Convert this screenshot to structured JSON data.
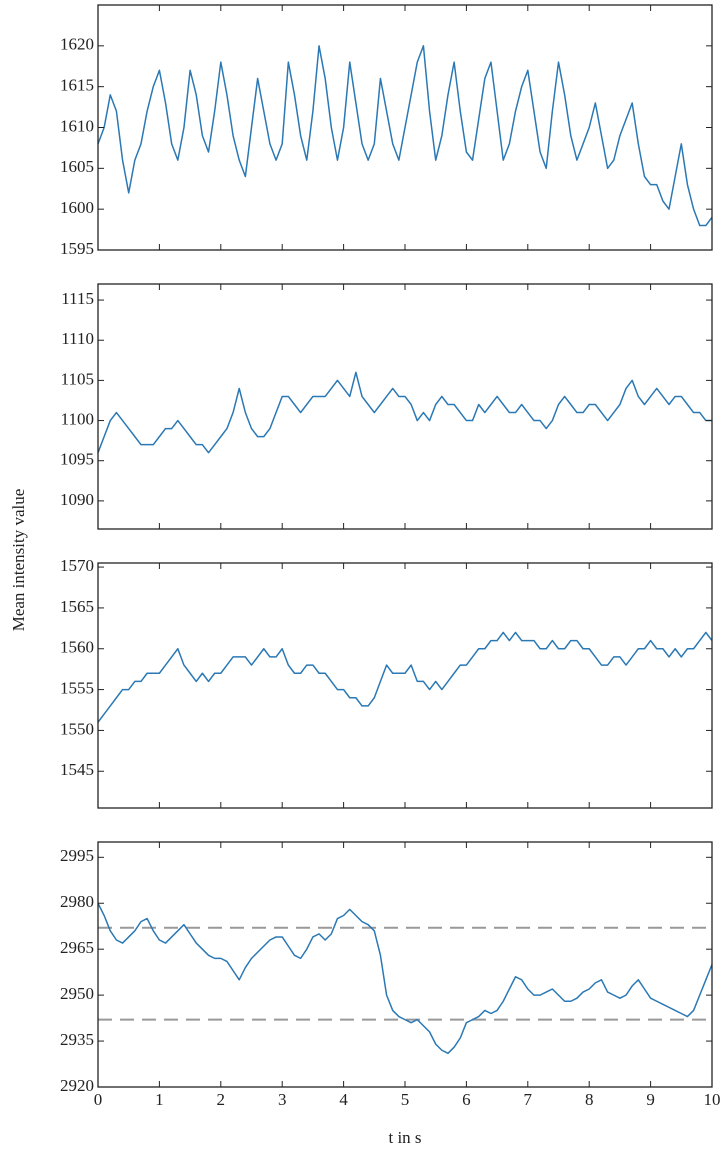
{
  "ylabel": "Mean intensity value",
  "chart_data": [
    {
      "type": "line",
      "color": "#2a78b4",
      "ylim": [
        1595,
        1625
      ],
      "yticks": [
        1595,
        1600,
        1605,
        1610,
        1615,
        1620
      ],
      "xlim": [
        0,
        10
      ],
      "xticks": [
        0,
        1,
        2,
        3,
        4,
        5,
        6,
        7,
        8,
        9,
        10
      ],
      "show_xtick_labels": false,
      "x": [
        0,
        0.1,
        0.2,
        0.3,
        0.4,
        0.5,
        0.6,
        0.7,
        0.8,
        0.9,
        1,
        1.1,
        1.2,
        1.3,
        1.4,
        1.5,
        1.6,
        1.7,
        1.8,
        1.9,
        2,
        2.1,
        2.2,
        2.3,
        2.4,
        2.5,
        2.6,
        2.7,
        2.8,
        2.9,
        3,
        3.1,
        3.2,
        3.3,
        3.4,
        3.5,
        3.6,
        3.7,
        3.8,
        3.9,
        4,
        4.1,
        4.2,
        4.3,
        4.4,
        4.5,
        4.6,
        4.7,
        4.8,
        4.9,
        5,
        5.1,
        5.2,
        5.3,
        5.4,
        5.5,
        5.6,
        5.7,
        5.8,
        5.9,
        6,
        6.1,
        6.2,
        6.3,
        6.4,
        6.5,
        6.6,
        6.7,
        6.8,
        6.9,
        7,
        7.1,
        7.2,
        7.3,
        7.4,
        7.5,
        7.6,
        7.7,
        7.8,
        7.9,
        8,
        8.1,
        8.2,
        8.3,
        8.4,
        8.5,
        8.6,
        8.7,
        8.8,
        8.9,
        9,
        9.1,
        9.2,
        9.3,
        9.4,
        9.5,
        9.6,
        9.7,
        9.8,
        9.9,
        10
      ],
      "values": [
        1608,
        1610,
        1614,
        1612,
        1606,
        1602,
        1606,
        1608,
        1612,
        1615,
        1617,
        1613,
        1608,
        1606,
        1610,
        1617,
        1614,
        1609,
        1607,
        1612,
        1618,
        1614,
        1609,
        1606,
        1604,
        1610,
        1616,
        1612,
        1608,
        1606,
        1608,
        1618,
        1614,
        1609,
        1606,
        1612,
        1620,
        1616,
        1610,
        1606,
        1610,
        1618,
        1613,
        1608,
        1606,
        1608,
        1616,
        1612,
        1608,
        1606,
        1610,
        1614,
        1618,
        1620,
        1612,
        1606,
        1609,
        1614,
        1618,
        1612,
        1607,
        1606,
        1611,
        1616,
        1618,
        1612,
        1606,
        1608,
        1612,
        1615,
        1617,
        1612,
        1607,
        1605,
        1612,
        1618,
        1614,
        1609,
        1606,
        1608,
        1610,
        1613,
        1609,
        1605,
        1606,
        1609,
        1611,
        1613,
        1608,
        1604,
        1603,
        1603,
        1601,
        1600,
        1604,
        1608,
        1603,
        1600,
        1598,
        1598,
        1599
      ]
    },
    {
      "type": "line",
      "color": "#2a78b4",
      "ylim": [
        1086.5,
        1117
      ],
      "yticks": [
        1090,
        1095,
        1100,
        1105,
        1110,
        1115
      ],
      "xlim": [
        0,
        10
      ],
      "xticks": [
        0,
        1,
        2,
        3,
        4,
        5,
        6,
        7,
        8,
        9,
        10
      ],
      "show_xtick_labels": false,
      "x": [
        0,
        0.1,
        0.2,
        0.3,
        0.4,
        0.5,
        0.6,
        0.7,
        0.8,
        0.9,
        1,
        1.1,
        1.2,
        1.3,
        1.4,
        1.5,
        1.6,
        1.7,
        1.8,
        1.9,
        2,
        2.1,
        2.2,
        2.3,
        2.4,
        2.5,
        2.6,
        2.7,
        2.8,
        2.9,
        3,
        3.1,
        3.2,
        3.3,
        3.4,
        3.5,
        3.6,
        3.7,
        3.8,
        3.9,
        4,
        4.1,
        4.2,
        4.3,
        4.4,
        4.5,
        4.6,
        4.7,
        4.8,
        4.9,
        5,
        5.1,
        5.2,
        5.3,
        5.4,
        5.5,
        5.6,
        5.7,
        5.8,
        5.9,
        6,
        6.1,
        6.2,
        6.3,
        6.4,
        6.5,
        6.6,
        6.7,
        6.8,
        6.9,
        7,
        7.1,
        7.2,
        7.3,
        7.4,
        7.5,
        7.6,
        7.7,
        7.8,
        7.9,
        8,
        8.1,
        8.2,
        8.3,
        8.4,
        8.5,
        8.6,
        8.7,
        8.8,
        8.9,
        9,
        9.1,
        9.2,
        9.3,
        9.4,
        9.5,
        9.6,
        9.7,
        9.8,
        9.9,
        10
      ],
      "values": [
        1096,
        1098,
        1100,
        1101,
        1100,
        1099,
        1098,
        1097,
        1097,
        1097,
        1098,
        1099,
        1099,
        1100,
        1099,
        1098,
        1097,
        1097,
        1096,
        1097,
        1098,
        1099,
        1101,
        1104,
        1101,
        1099,
        1098,
        1098,
        1099,
        1101,
        1103,
        1103,
        1102,
        1101,
        1102,
        1103,
        1103,
        1103,
        1104,
        1105,
        1104,
        1103,
        1106,
        1103,
        1102,
        1101,
        1102,
        1103,
        1104,
        1103,
        1103,
        1102,
        1100,
        1101,
        1100,
        1102,
        1103,
        1102,
        1102,
        1101,
        1100,
        1100,
        1102,
        1101,
        1102,
        1103,
        1102,
        1101,
        1101,
        1102,
        1101,
        1100,
        1100,
        1099,
        1100,
        1102,
        1103,
        1102,
        1101,
        1101,
        1102,
        1102,
        1101,
        1100,
        1101,
        1102,
        1104,
        1105,
        1103,
        1102,
        1103,
        1104,
        1103,
        1102,
        1103,
        1103,
        1102,
        1101,
        1101,
        1100,
        1100
      ]
    },
    {
      "type": "line",
      "color": "#2a78b4",
      "ylim": [
        1540.5,
        1570.5
      ],
      "yticks": [
        1545,
        1550,
        1555,
        1560,
        1565,
        1570
      ],
      "xlim": [
        0,
        10
      ],
      "xticks": [
        0,
        1,
        2,
        3,
        4,
        5,
        6,
        7,
        8,
        9,
        10
      ],
      "show_xtick_labels": false,
      "x": [
        0,
        0.1,
        0.2,
        0.3,
        0.4,
        0.5,
        0.6,
        0.7,
        0.8,
        0.9,
        1,
        1.1,
        1.2,
        1.3,
        1.4,
        1.5,
        1.6,
        1.7,
        1.8,
        1.9,
        2,
        2.1,
        2.2,
        2.3,
        2.4,
        2.5,
        2.6,
        2.7,
        2.8,
        2.9,
        3,
        3.1,
        3.2,
        3.3,
        3.4,
        3.5,
        3.6,
        3.7,
        3.8,
        3.9,
        4,
        4.1,
        4.2,
        4.3,
        4.4,
        4.5,
        4.6,
        4.7,
        4.8,
        4.9,
        5,
        5.1,
        5.2,
        5.3,
        5.4,
        5.5,
        5.6,
        5.7,
        5.8,
        5.9,
        6,
        6.1,
        6.2,
        6.3,
        6.4,
        6.5,
        6.6,
        6.7,
        6.8,
        6.9,
        7,
        7.1,
        7.2,
        7.3,
        7.4,
        7.5,
        7.6,
        7.7,
        7.8,
        7.9,
        8,
        8.1,
        8.2,
        8.3,
        8.4,
        8.5,
        8.6,
        8.7,
        8.8,
        8.9,
        9,
        9.1,
        9.2,
        9.3,
        9.4,
        9.5,
        9.6,
        9.7,
        9.8,
        9.9,
        10
      ],
      "values": [
        1551,
        1552,
        1553,
        1554,
        1555,
        1555,
        1556,
        1556,
        1557,
        1557,
        1557,
        1558,
        1559,
        1560,
        1558,
        1557,
        1556,
        1557,
        1556,
        1557,
        1557,
        1558,
        1559,
        1559,
        1559,
        1558,
        1559,
        1560,
        1559,
        1559,
        1560,
        1558,
        1557,
        1557,
        1558,
        1558,
        1557,
        1557,
        1556,
        1555,
        1555,
        1554,
        1554,
        1553,
        1553,
        1554,
        1556,
        1558,
        1557,
        1557,
        1557,
        1558,
        1556,
        1556,
        1555,
        1556,
        1555,
        1556,
        1557,
        1558,
        1558,
        1559,
        1560,
        1560,
        1561,
        1561,
        1562,
        1561,
        1562,
        1561,
        1561,
        1561,
        1560,
        1560,
        1561,
        1560,
        1560,
        1561,
        1561,
        1560,
        1560,
        1559,
        1558,
        1558,
        1559,
        1559,
        1558,
        1559,
        1560,
        1560,
        1561,
        1560,
        1560,
        1559,
        1560,
        1559,
        1560,
        1560,
        1561,
        1562,
        1561
      ]
    },
    {
      "type": "line",
      "color": "#2a78b4",
      "ylim": [
        2920,
        3000
      ],
      "yticks": [
        2920,
        2935,
        2950,
        2965,
        2980,
        2995
      ],
      "xlim": [
        0,
        10
      ],
      "xticks": [
        0,
        1,
        2,
        3,
        4,
        5,
        6,
        7,
        8,
        9,
        10
      ],
      "show_xtick_labels": true,
      "xlabel": "t in s",
      "hlines": [
        2972,
        2942
      ],
      "hline_color": "#999999",
      "x": [
        0,
        0.1,
        0.2,
        0.3,
        0.4,
        0.5,
        0.6,
        0.7,
        0.8,
        0.9,
        1,
        1.1,
        1.2,
        1.3,
        1.4,
        1.5,
        1.6,
        1.7,
        1.8,
        1.9,
        2,
        2.1,
        2.2,
        2.3,
        2.4,
        2.5,
        2.6,
        2.7,
        2.8,
        2.9,
        3,
        3.1,
        3.2,
        3.3,
        3.4,
        3.5,
        3.6,
        3.7,
        3.8,
        3.9,
        4,
        4.1,
        4.2,
        4.3,
        4.4,
        4.5,
        4.6,
        4.7,
        4.8,
        4.9,
        5,
        5.1,
        5.2,
        5.3,
        5.4,
        5.5,
        5.6,
        5.7,
        5.8,
        5.9,
        6,
        6.1,
        6.2,
        6.3,
        6.4,
        6.5,
        6.6,
        6.7,
        6.8,
        6.9,
        7,
        7.1,
        7.2,
        7.3,
        7.4,
        7.5,
        7.6,
        7.7,
        7.8,
        7.9,
        8,
        8.1,
        8.2,
        8.3,
        8.4,
        8.5,
        8.6,
        8.7,
        8.8,
        8.9,
        9,
        9.1,
        9.2,
        9.3,
        9.4,
        9.5,
        9.6,
        9.7,
        9.8,
        9.9,
        10
      ],
      "values": [
        2980,
        2976,
        2971,
        2968,
        2967,
        2969,
        2971,
        2974,
        2975,
        2971,
        2968,
        2967,
        2969,
        2971,
        2973,
        2970,
        2967,
        2965,
        2963,
        2962,
        2962,
        2961,
        2958,
        2955,
        2959,
        2962,
        2964,
        2966,
        2968,
        2969,
        2969,
        2966,
        2963,
        2962,
        2965,
        2969,
        2970,
        2968,
        2970,
        2975,
        2976,
        2978,
        2976,
        2974,
        2973,
        2971,
        2963,
        2950,
        2945,
        2943,
        2942,
        2941,
        2942,
        2940,
        2938,
        2934,
        2932,
        2931,
        2933,
        2936,
        2941,
        2942,
        2943,
        2945,
        2944,
        2945,
        2948,
        2952,
        2956,
        2955,
        2952,
        2950,
        2950,
        2951,
        2952,
        2950,
        2948,
        2948,
        2949,
        2951,
        2952,
        2954,
        2955,
        2951,
        2950,
        2949,
        2950,
        2953,
        2955,
        2952,
        2949,
        2948,
        2947,
        2946,
        2945,
        2944,
        2943,
        2945,
        2950,
        2955,
        2960
      ]
    }
  ]
}
